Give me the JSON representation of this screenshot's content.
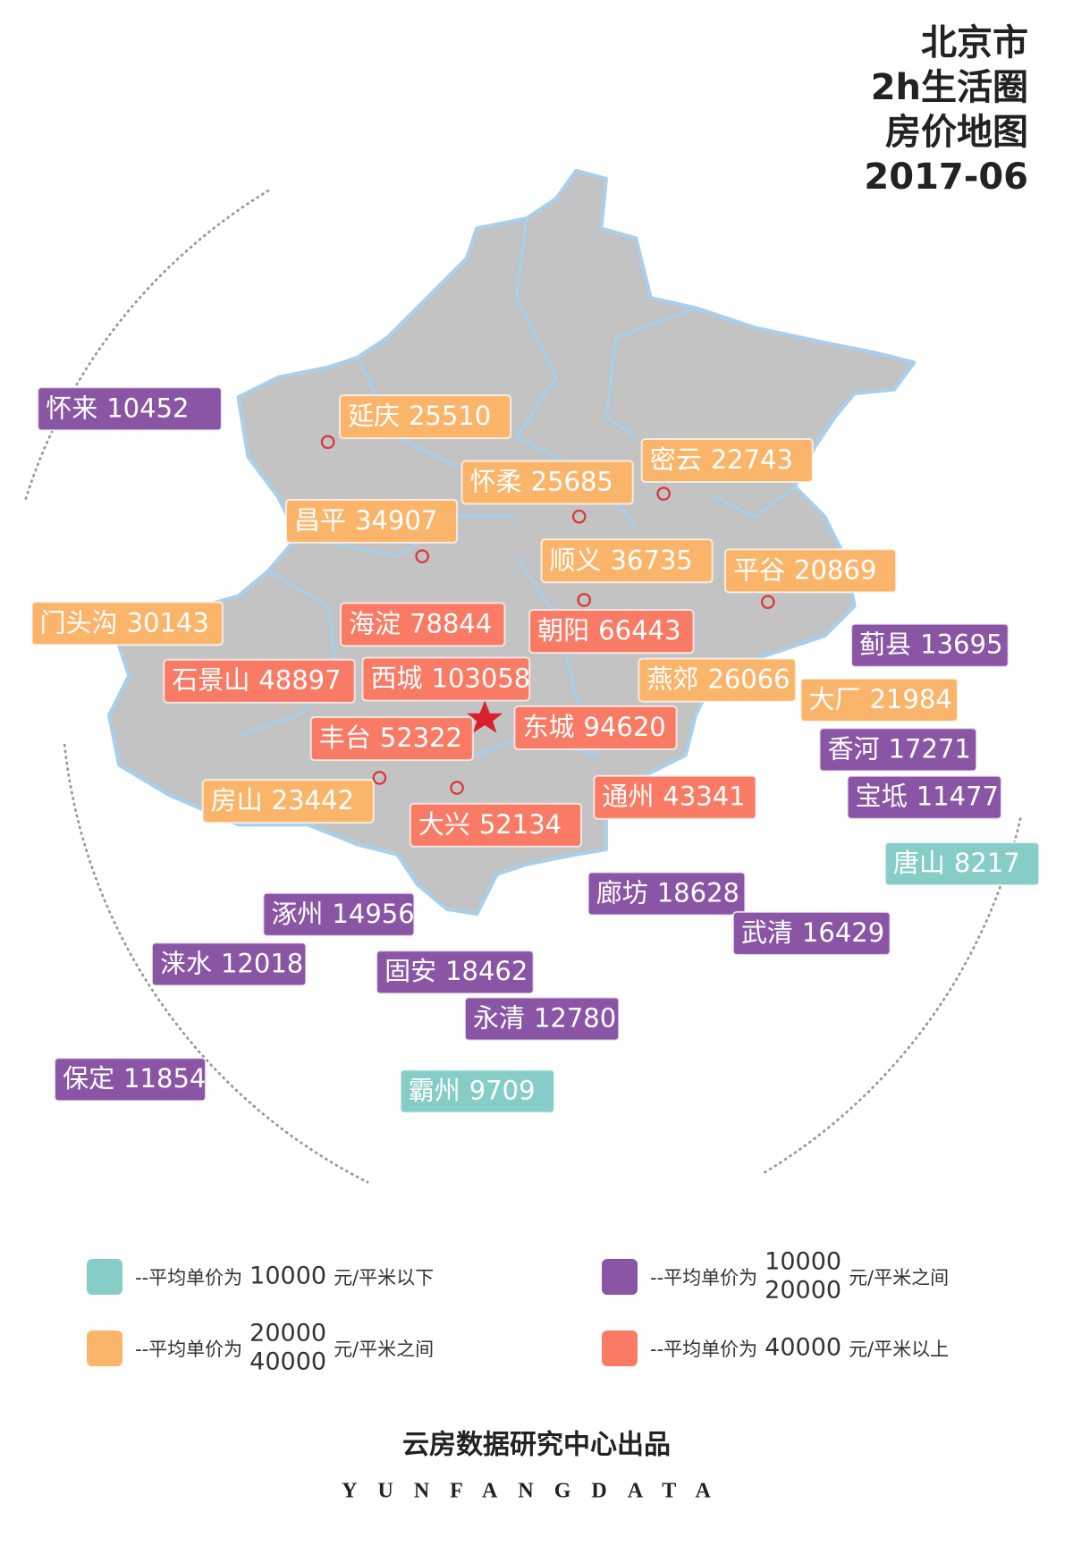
{
  "title": {
    "lines": [
      "北京市",
      "2h生活圈",
      "房价地图",
      "2017-06"
    ]
  },
  "labels": [
    {
      "name": "怀来",
      "price": 10452,
      "color": "#8a55a4"
    },
    {
      "name": "延庆",
      "price": 25510,
      "color": "#fbb56b"
    },
    {
      "name": "怀柔",
      "price": 25685,
      "color": "#fbb56b"
    },
    {
      "name": "密云",
      "price": 22743,
      "color": "#fbb56b"
    },
    {
      "name": "昌平",
      "price": 34907,
      "color": "#fbb56b"
    },
    {
      "name": "顺义",
      "price": 36735,
      "color": "#fbb56b"
    },
    {
      "name": "平谷",
      "price": 20869,
      "color": "#fbb56b"
    },
    {
      "name": "门头沟",
      "price": 30143,
      "color": "#fbb56b"
    },
    {
      "name": "海淀",
      "price": 78844,
      "color": "#f97b65"
    },
    {
      "name": "朝阳",
      "price": 66443,
      "color": "#f97b65"
    },
    {
      "name": "蓟县",
      "price": 13695,
      "color": "#8a55a4"
    },
    {
      "name": "石景山",
      "price": 48897,
      "color": "#f97b65"
    },
    {
      "name": "西城",
      "price": 103058,
      "color": "#f97b65"
    },
    {
      "name": "燕郊",
      "price": 26066,
      "color": "#fbb56b"
    },
    {
      "name": "大厂",
      "price": 21984,
      "color": "#fbb56b"
    },
    {
      "name": "东城",
      "price": 94620,
      "color": "#f97b65"
    },
    {
      "name": "丰台",
      "price": 52322,
      "color": "#f97b65"
    },
    {
      "name": "香河",
      "price": 17271,
      "color": "#8a55a4"
    },
    {
      "name": "房山",
      "price": 23442,
      "color": "#fbb56b"
    },
    {
      "name": "通州",
      "price": 43341,
      "color": "#f97b65"
    },
    {
      "name": "宝坻",
      "price": 11477,
      "color": "#8a55a4"
    },
    {
      "name": "大兴",
      "price": 52134,
      "color": "#f97b65"
    },
    {
      "name": "唐山",
      "price": 8217,
      "color": "#86cdc8"
    },
    {
      "name": "廊坊",
      "price": 18628,
      "color": "#8a55a4"
    },
    {
      "name": "涿州",
      "price": 14956,
      "color": "#8a55a4"
    },
    {
      "name": "武清",
      "price": 16429,
      "color": "#8a55a4"
    },
    {
      "name": "涞水",
      "price": 12018,
      "color": "#8a55a4"
    },
    {
      "name": "固安",
      "price": 18462,
      "color": "#8a55a4"
    },
    {
      "name": "永清",
      "price": 12780,
      "color": "#8a55a4"
    },
    {
      "name": "保定",
      "price": 11854,
      "color": "#8a55a4"
    },
    {
      "name": "霸州",
      "price": 9709,
      "color": "#86cdc8"
    }
  ],
  "legend": [
    {
      "prefix": "--平均单价为",
      "values": [
        10000
      ],
      "suffix": "元/平米以下",
      "color": "#86cdc8"
    },
    {
      "prefix": "--平均单价为",
      "values": [
        10000,
        20000
      ],
      "suffix": "元/平米之间",
      "color": "#8a55a4"
    },
    {
      "prefix": "--平均单价为",
      "values": [
        20000,
        40000
      ],
      "suffix": "元/平米之间",
      "color": "#fbb56b"
    },
    {
      "prefix": "--平均单价为",
      "values": [
        40000
      ],
      "suffix": "元/平米以上",
      "color": "#f97b65"
    }
  ],
  "footer": {
    "publisher": "云房数据研究中心出品",
    "brand": "YUNFANGDATA"
  }
}
